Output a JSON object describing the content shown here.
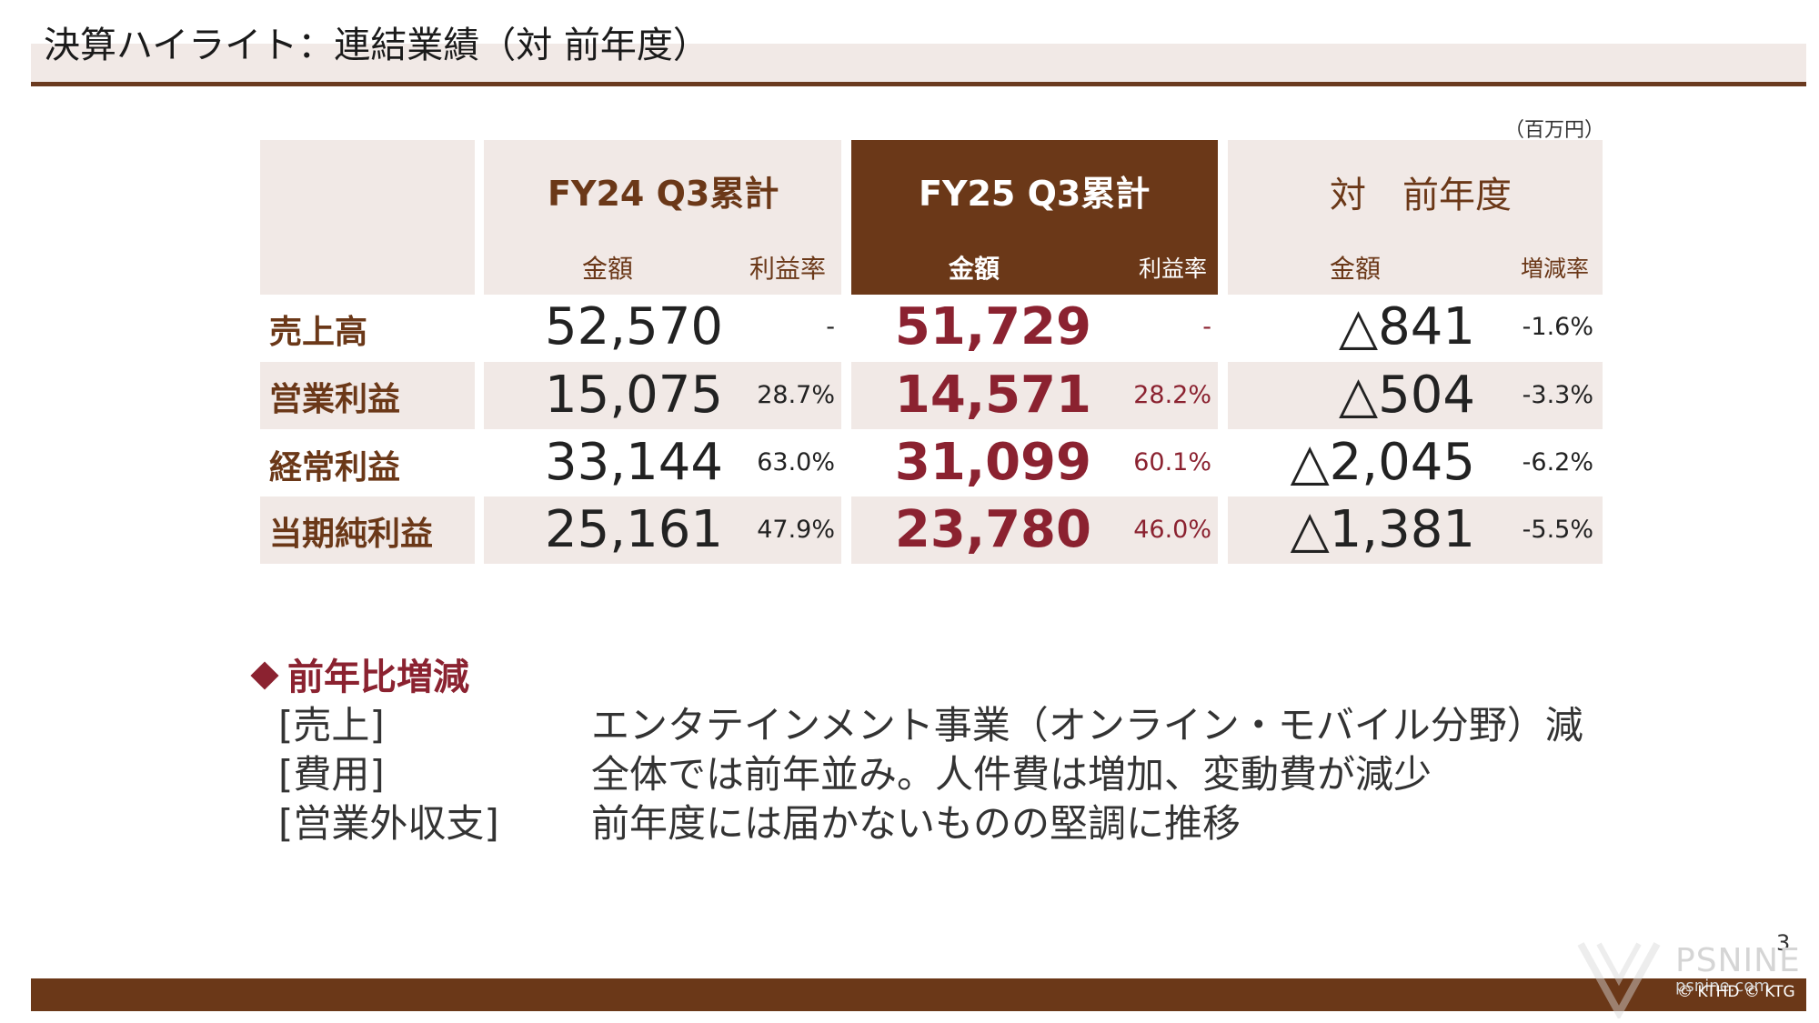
{
  "title": "決算ハイライト：連結業績（対 前年度）",
  "unit": "（百万円）",
  "table": {
    "groups": [
      {
        "title": "FY24 Q3累計",
        "sub_amount": "金額",
        "sub_rate": "利益率"
      },
      {
        "title": "FY25 Q3累計",
        "sub_amount": "金額",
        "sub_rate": "利益率"
      },
      {
        "title": "対　前年度",
        "sub_amount": "金額",
        "sub_rate": "増減率"
      }
    ],
    "rows": [
      {
        "label": "売上高",
        "prev": "52,570",
        "prev_rate": "-",
        "cur": "51,729",
        "cur_rate": "-",
        "diff": "△841",
        "diff_rate": "-1.6%"
      },
      {
        "label": "営業利益",
        "prev": "15,075",
        "prev_rate": "28.7%",
        "cur": "14,571",
        "cur_rate": "28.2%",
        "diff": "△504",
        "diff_rate": "-3.3%"
      },
      {
        "label": "経常利益",
        "prev": "33,144",
        "prev_rate": "63.0%",
        "cur": "31,099",
        "cur_rate": "60.1%",
        "diff": "△2,045",
        "diff_rate": "-6.2%"
      },
      {
        "label": "当期純利益",
        "prev": "25,161",
        "prev_rate": "47.9%",
        "cur": "23,780",
        "cur_rate": "46.0%",
        "diff": "△1,381",
        "diff_rate": "-5.5%"
      }
    ]
  },
  "summary": {
    "heading": "前年比増減",
    "items": [
      {
        "label": "[売上]",
        "text": "エンタテインメント事業（オンライン・モバイル分野）減"
      },
      {
        "label": "[費用]",
        "text": "全体では前年並み。人件費は増加、変動費が減少"
      },
      {
        "label": "[営業外収支]",
        "text": "前年度には届かないものの堅調に推移"
      }
    ]
  },
  "page_number": "3",
  "copyright": "© KTHD © KTG",
  "watermark": {
    "brand": "PSNINE",
    "url": "psnine.com"
  },
  "colors": {
    "brown": "#6b3818",
    "red": "#8b2230",
    "shade": "#f1e9e6"
  }
}
